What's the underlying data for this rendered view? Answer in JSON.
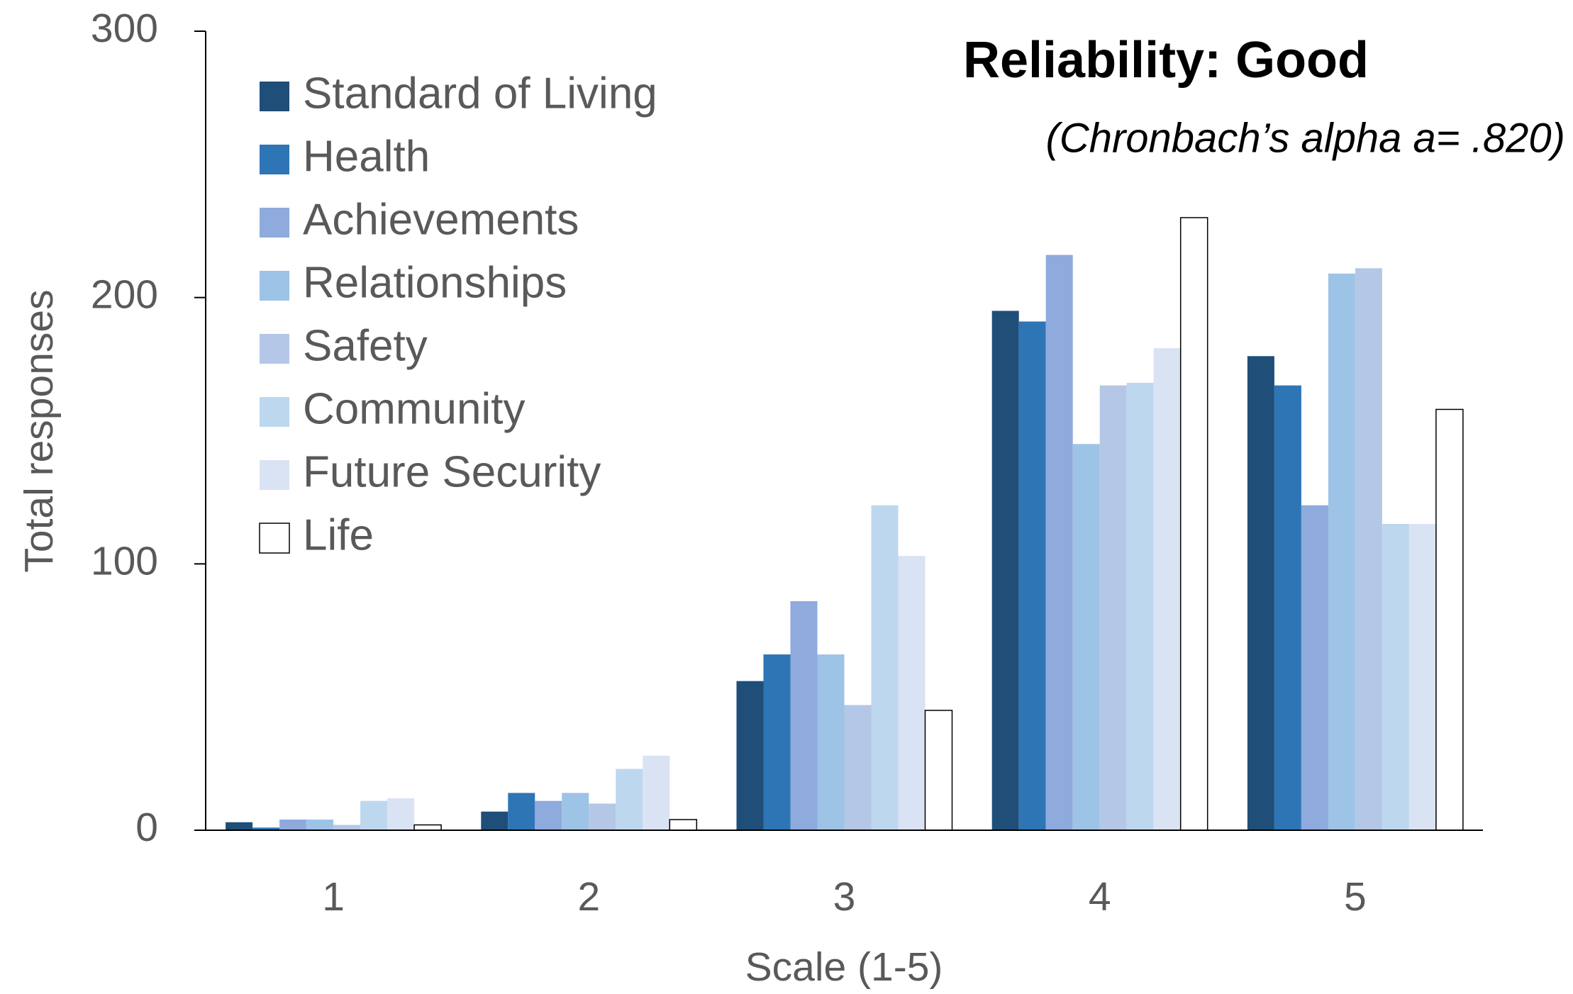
{
  "chart_data": {
    "type": "bar",
    "title": "Reliability: Good",
    "subtitle": "(Chronbach’s alpha  a= .820)",
    "x_label": "Scale (1-5)",
    "y_label": "Total responses",
    "categories": [
      "1",
      "2",
      "3",
      "4",
      "5"
    ],
    "series": [
      {
        "name": "Standard of Living",
        "color": "#1f4e79",
        "values": [
          3,
          7,
          56,
          195,
          178
        ]
      },
      {
        "name": "Health",
        "color": "#2e75b6",
        "values": [
          1,
          14,
          66,
          191,
          167
        ]
      },
      {
        "name": "Achievements",
        "color": "#8faadc",
        "values": [
          4,
          11,
          86,
          216,
          122
        ]
      },
      {
        "name": "Relationships",
        "color": "#9dc3e6",
        "values": [
          4,
          14,
          66,
          145,
          209
        ]
      },
      {
        "name": "Safety",
        "color": "#b4c7e7",
        "values": [
          2,
          10,
          47,
          167,
          211
        ]
      },
      {
        "name": "Community",
        "color": "#bdd7ee",
        "values": [
          11,
          23,
          122,
          168,
          115
        ]
      },
      {
        "name": "Future Security",
        "color": "#dae3f3",
        "values": [
          12,
          28,
          103,
          181,
          115
        ]
      },
      {
        "name": "Life",
        "color": "#ffffff",
        "values": [
          2,
          4,
          45,
          230,
          158
        ]
      }
    ],
    "ylim": [
      0,
      300
    ],
    "yticks": [
      0,
      100,
      200,
      300
    ],
    "grid": false,
    "legend": "upper left"
  }
}
